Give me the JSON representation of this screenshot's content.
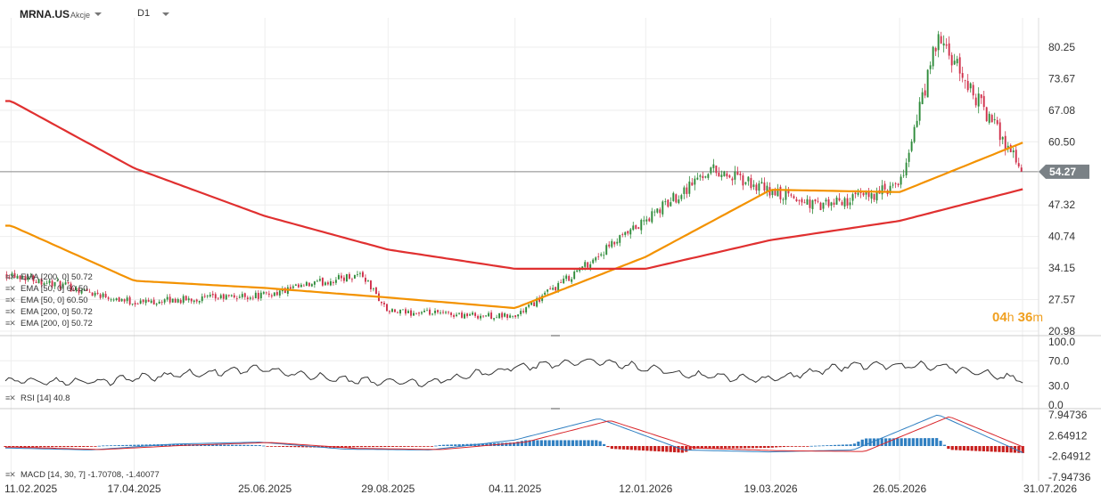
{
  "header": {
    "symbol": "MRNA.US",
    "asset_type": "Akcje",
    "timeframe": "D1"
  },
  "price_panel": {
    "y_ticks": [
      "80.25",
      "73.67",
      "67.08",
      "60.50",
      "54.27",
      "47.32",
      "40.74",
      "34.15",
      "27.57",
      "20.98"
    ],
    "last_price": "54.27",
    "timer": {
      "hours": "04",
      "h": "h",
      "minutes": "36",
      "m": "m"
    },
    "legend": [
      {
        "label": "EMA [200, 0] 50.72",
        "color": "#333333"
      },
      {
        "label": "EMA [50, 0] 60.50",
        "color": "#333333"
      },
      {
        "label": "EMA [50, 0] 60.50",
        "color": "#f39200"
      },
      {
        "label": "EMA [200, 0] 50.72",
        "color": "#e03030"
      },
      {
        "label": "EMA [200, 0] 50.72",
        "color": "#333333"
      }
    ]
  },
  "rsi_panel": {
    "y_ticks": [
      "100.0",
      "70.0",
      "30.0",
      "0.0"
    ],
    "legend": "RSI [14] 40.8"
  },
  "macd_panel": {
    "y_ticks": [
      "7.94736",
      "2.64912",
      "-2.64912",
      "-7.94736"
    ],
    "legend": "MACD [14, 30, 7] -1.70708, -1.40077"
  },
  "x_axis": {
    "labels": [
      "11.02.2025",
      "17.04.2025",
      "25.06.2025",
      "29.08.2025",
      "04.11.2025",
      "12.01.2026",
      "19.03.2026",
      "26.05.2026",
      "31.07.2026"
    ]
  },
  "chart_data": [
    {
      "type": "candlestick",
      "title": "MRNA.US",
      "ylim": [
        20.98,
        85
      ],
      "last_value": 54.27,
      "close_path": {
        "x": [
          "11.02.2025",
          "17.04.2025",
          "25.06.2025",
          "08.2025",
          "29.08.2025",
          "04.11.2025",
          "12.01.2026",
          "02.2026",
          "19.03.2026",
          "04.2026",
          "26.05.2026",
          "06.2026",
          "31.07.2026"
        ],
        "close": [
          33,
          27,
          28.5,
          33,
          25,
          24,
          44,
          55,
          50,
          47,
          51,
          82,
          54.27
        ]
      },
      "series": [
        {
          "name": "EMA [50, 0]",
          "color": "#f39200",
          "x": [
            "11.02.2025",
            "17.04.2025",
            "25.06.2025",
            "29.08.2025",
            "04.11.2025",
            "12.01.2026",
            "19.03.2026",
            "26.05.2026",
            "31.07.2026"
          ],
          "values": [
            43,
            31.5,
            30,
            28,
            25.8,
            36.5,
            50.5,
            50,
            60.5
          ]
        },
        {
          "name": "EMA [200, 0]",
          "color": "#e03030",
          "x": [
            "11.02.2025",
            "17.04.2025",
            "25.06.2025",
            "29.08.2025",
            "04.11.2025",
            "12.01.2026",
            "19.03.2026",
            "26.05.2026",
            "31.07.2026"
          ],
          "values": [
            69,
            55,
            45,
            38,
            34,
            34,
            40,
            44,
            50.72
          ]
        }
      ]
    },
    {
      "type": "line",
      "title": "RSI [14]",
      "ylim": [
        0,
        100
      ],
      "levels": [
        30,
        70
      ],
      "series": [
        {
          "name": "RSI [14]",
          "values": [
            38,
            36,
            48,
            57,
            39,
            35,
            60,
            70,
            48,
            40,
            64,
            62,
            40.8
          ]
        }
      ]
    },
    {
      "type": "bar",
      "title": "MACD [14, 30, 7]",
      "ylim": [
        -7.94736,
        7.94736
      ],
      "series": [
        {
          "name": "MACD",
          "values": [
            -0.5,
            -1,
            0.5,
            1,
            -0.8,
            -1,
            1.5,
            7,
            -1,
            -1.5,
            -1,
            8,
            -1.70708
          ]
        },
        {
          "name": "Signal",
          "values": [
            -0.3,
            -0.9,
            0.2,
            0.9,
            -0.6,
            -0.9,
            1,
            6.5,
            -0.5,
            -1.2,
            -1.4,
            7.5,
            -1.40077
          ]
        }
      ]
    }
  ]
}
